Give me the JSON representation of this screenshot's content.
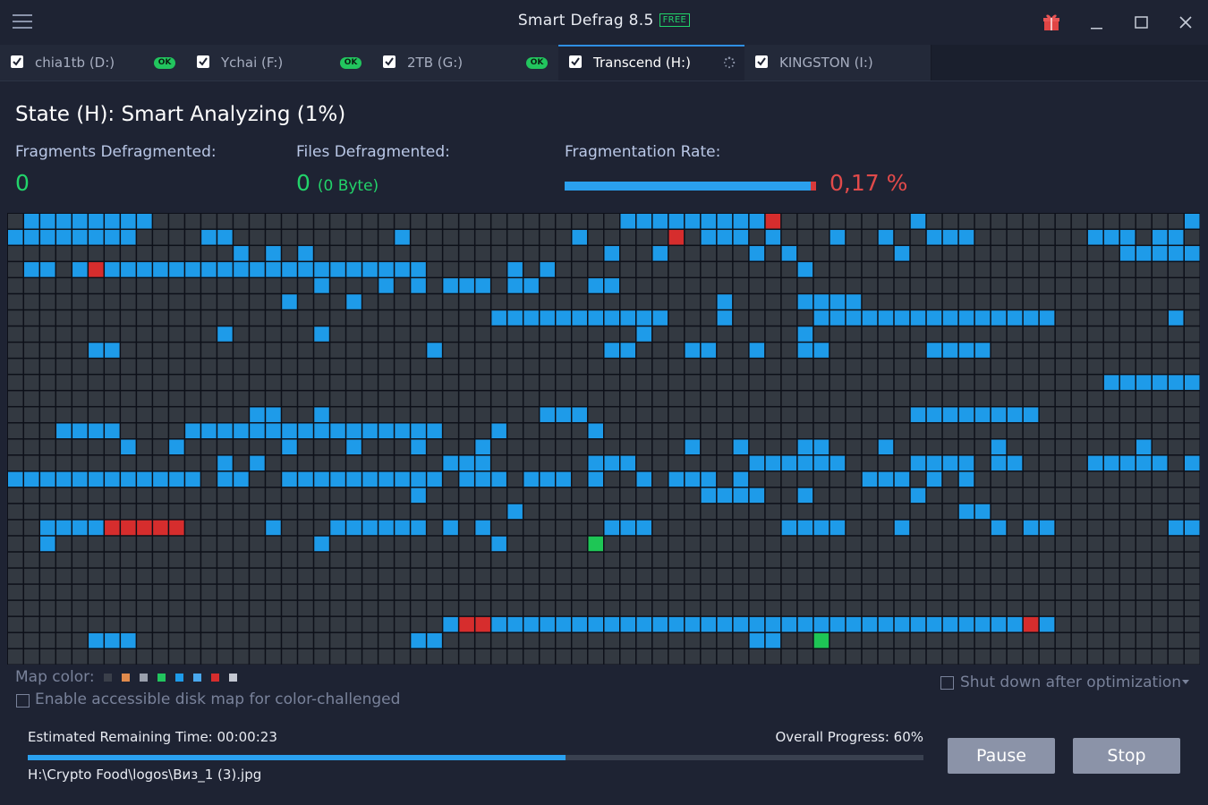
{
  "app": {
    "title": "Smart Defrag 8.5",
    "edition_badge": "FREE"
  },
  "tabs": [
    {
      "label": "chia1tb (D:)",
      "checked": true,
      "status": "OK",
      "active": false
    },
    {
      "label": "Ychai (F:)",
      "checked": true,
      "status": "OK",
      "active": false
    },
    {
      "label": "2TB (G:)",
      "checked": true,
      "status": "OK",
      "active": false
    },
    {
      "label": "Transcend (H:)",
      "checked": true,
      "status": "analyzing",
      "active": true
    },
    {
      "label": "KINGSTON (I:)",
      "checked": true,
      "status": "",
      "active": false
    }
  ],
  "state": {
    "title": "State (H): Smart Analyzing (1%)"
  },
  "stats": {
    "fragments_label": "Fragments Defragmented:",
    "fragments_value": "0",
    "files_label": "Files Defragmented:",
    "files_value": "0",
    "files_size": "(0 Byte)",
    "rate_label": "Fragmentation Rate:",
    "rate_value": "0,17 %",
    "rate_fraction": 0.0017
  },
  "disk_map": {
    "cols": 74,
    "rows": 28,
    "colors": {
      "free": "#333941",
      "used": "#1e9be9",
      "fragmented": "#d62d2d",
      "processing": "#1ec655"
    },
    "blue_runs": [
      [
        0,
        1,
        8
      ],
      [
        0,
        38,
        46
      ],
      [
        0,
        56,
        56
      ],
      [
        0,
        73,
        73
      ],
      [
        1,
        0,
        7
      ],
      [
        1,
        12,
        13
      ],
      [
        1,
        24,
        24
      ],
      [
        1,
        35,
        35
      ],
      [
        1,
        43,
        45
      ],
      [
        1,
        47,
        47
      ],
      [
        1,
        51,
        51
      ],
      [
        1,
        54,
        54
      ],
      [
        1,
        57,
        59
      ],
      [
        1,
        67,
        69
      ],
      [
        1,
        71,
        72
      ],
      [
        2,
        14,
        14
      ],
      [
        2,
        16,
        16
      ],
      [
        2,
        18,
        18
      ],
      [
        2,
        37,
        37
      ],
      [
        2,
        40,
        40
      ],
      [
        2,
        46,
        46
      ],
      [
        2,
        48,
        48
      ],
      [
        2,
        55,
        55
      ],
      [
        2,
        69,
        73
      ],
      [
        3,
        1,
        2
      ],
      [
        3,
        4,
        4
      ],
      [
        3,
        6,
        25
      ],
      [
        3,
        31,
        31
      ],
      [
        3,
        33,
        33
      ],
      [
        3,
        49,
        49
      ],
      [
        4,
        19,
        19
      ],
      [
        4,
        23,
        23
      ],
      [
        4,
        25,
        25
      ],
      [
        4,
        27,
        29
      ],
      [
        4,
        31,
        32
      ],
      [
        4,
        36,
        37
      ],
      [
        5,
        17,
        17
      ],
      [
        5,
        21,
        21
      ],
      [
        5,
        44,
        44
      ],
      [
        5,
        49,
        52
      ],
      [
        6,
        30,
        40
      ],
      [
        6,
        44,
        44
      ],
      [
        6,
        50,
        64
      ],
      [
        6,
        72,
        72
      ],
      [
        7,
        13,
        13
      ],
      [
        7,
        19,
        19
      ],
      [
        7,
        39,
        39
      ],
      [
        7,
        49,
        49
      ],
      [
        8,
        5,
        6
      ],
      [
        8,
        26,
        26
      ],
      [
        8,
        37,
        38
      ],
      [
        8,
        42,
        43
      ],
      [
        8,
        46,
        46
      ],
      [
        8,
        49,
        50
      ],
      [
        8,
        57,
        60
      ],
      [
        10,
        68,
        73
      ],
      [
        12,
        15,
        16
      ],
      [
        12,
        19,
        19
      ],
      [
        12,
        33,
        35
      ],
      [
        12,
        56,
        63
      ],
      [
        13,
        3,
        6
      ],
      [
        13,
        11,
        26
      ],
      [
        13,
        30,
        30
      ],
      [
        13,
        36,
        36
      ],
      [
        14,
        7,
        7
      ],
      [
        14,
        10,
        10
      ],
      [
        14,
        17,
        17
      ],
      [
        14,
        21,
        21
      ],
      [
        14,
        25,
        25
      ],
      [
        14,
        29,
        29
      ],
      [
        14,
        42,
        42
      ],
      [
        14,
        45,
        45
      ],
      [
        14,
        49,
        50
      ],
      [
        14,
        54,
        54
      ],
      [
        14,
        61,
        61
      ],
      [
        14,
        70,
        70
      ],
      [
        15,
        13,
        13
      ],
      [
        15,
        15,
        15
      ],
      [
        15,
        27,
        29
      ],
      [
        15,
        36,
        38
      ],
      [
        15,
        46,
        51
      ],
      [
        15,
        56,
        59
      ],
      [
        15,
        61,
        62
      ],
      [
        15,
        67,
        71
      ],
      [
        15,
        73,
        73
      ],
      [
        16,
        0,
        11
      ],
      [
        16,
        13,
        14
      ],
      [
        16,
        17,
        26
      ],
      [
        16,
        28,
        30
      ],
      [
        16,
        32,
        34
      ],
      [
        16,
        36,
        36
      ],
      [
        16,
        39,
        39
      ],
      [
        16,
        41,
        43
      ],
      [
        16,
        45,
        45
      ],
      [
        16,
        53,
        55
      ],
      [
        16,
        57,
        57
      ],
      [
        16,
        59,
        59
      ],
      [
        17,
        25,
        25
      ],
      [
        17,
        43,
        46
      ],
      [
        17,
        49,
        49
      ],
      [
        17,
        56,
        56
      ],
      [
        18,
        31,
        31
      ],
      [
        18,
        59,
        60
      ],
      [
        19,
        2,
        5
      ],
      [
        19,
        16,
        16
      ],
      [
        19,
        20,
        25
      ],
      [
        19,
        27,
        27
      ],
      [
        19,
        29,
        29
      ],
      [
        19,
        37,
        39
      ],
      [
        19,
        48,
        51
      ],
      [
        19,
        55,
        55
      ],
      [
        19,
        61,
        61
      ],
      [
        19,
        63,
        64
      ],
      [
        19,
        72,
        73
      ],
      [
        20,
        2,
        2
      ],
      [
        20,
        19,
        19
      ],
      [
        20,
        30,
        30
      ],
      [
        25,
        27,
        27
      ],
      [
        25,
        30,
        63
      ],
      [
        25,
        64,
        64
      ],
      [
        26,
        5,
        7
      ],
      [
        26,
        25,
        26
      ],
      [
        26,
        46,
        47
      ]
    ],
    "red_cells": [
      [
        0,
        47
      ],
      [
        1,
        41
      ],
      [
        3,
        5
      ],
      [
        19,
        6
      ],
      [
        19,
        7
      ],
      [
        19,
        8
      ],
      [
        19,
        9
      ],
      [
        19,
        10
      ],
      [
        25,
        28
      ],
      [
        25,
        29
      ],
      [
        25,
        63
      ]
    ],
    "green_cells": [
      [
        20,
        36
      ],
      [
        26,
        50
      ]
    ]
  },
  "legend": {
    "label": "Map color:",
    "swatches": [
      "#3a3f4a",
      "#e08a4c",
      "#9aa0ad",
      "#22c55e",
      "#1e9be9",
      "#4aa8ee",
      "#d62d2d",
      "#c4c8d2"
    ]
  },
  "options": {
    "accessible_map_label": "Enable accessible disk map for color-challenged",
    "shutdown_label": "Shut down after optimization"
  },
  "progress": {
    "eta_label": "Estimated Remaining Time: 00:00:23",
    "overall_label": "Overall Progress: 60%",
    "overall_fraction": 0.6,
    "current_file": "H:\\Crypto Food\\logos\\Виз_1 (3).jpg"
  },
  "buttons": {
    "pause": "Pause",
    "stop": "Stop"
  }
}
